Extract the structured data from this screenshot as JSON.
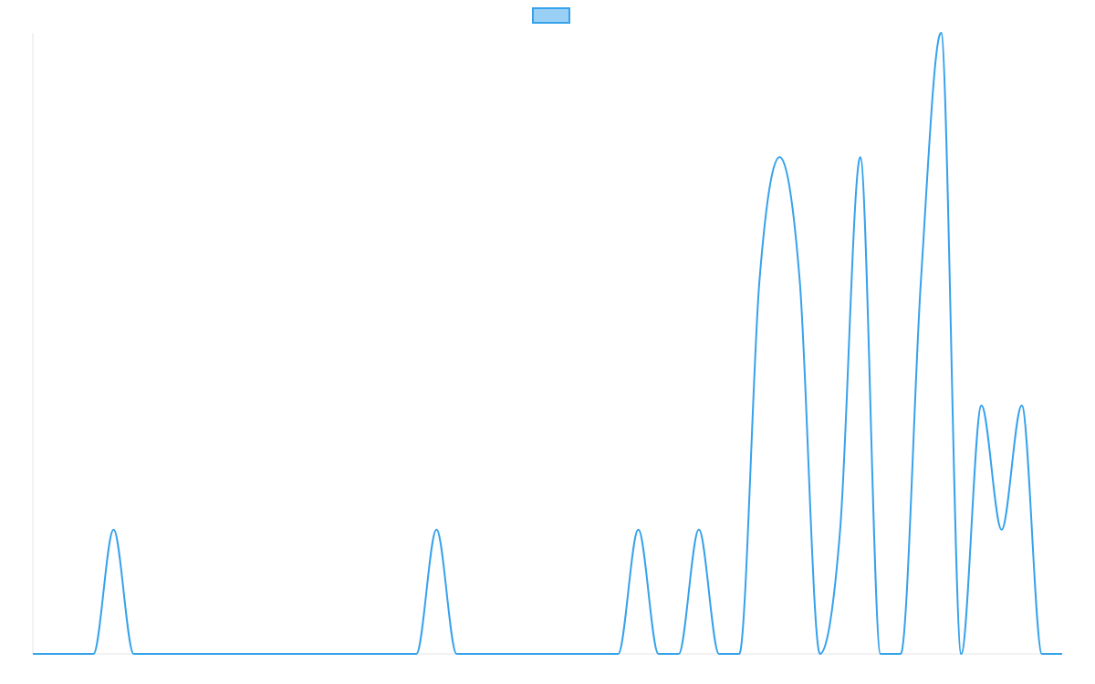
{
  "chart_data": {
    "type": "line",
    "legend": {
      "position": "top",
      "entries": [
        {
          "label": "",
          "color": "#36a2eb"
        }
      ]
    },
    "grid": false,
    "axes": {
      "x_visible": false,
      "y_visible": false
    },
    "series": [
      {
        "name": "",
        "color": "#36a2eb",
        "fill": false,
        "smooth": true,
        "values": [
          0,
          0,
          0,
          0,
          1,
          0,
          0,
          0,
          0,
          0,
          0,
          0,
          0,
          0,
          0,
          0,
          0,
          0,
          0,
          0,
          1,
          0,
          0,
          0,
          0,
          0,
          0,
          0,
          0,
          0,
          1,
          0,
          0,
          1,
          0,
          0,
          3,
          4,
          3,
          0,
          1,
          4,
          0,
          0,
          3,
          5,
          0,
          2,
          1,
          2,
          0,
          0
        ]
      }
    ],
    "ylim": [
      0,
      5
    ]
  }
}
